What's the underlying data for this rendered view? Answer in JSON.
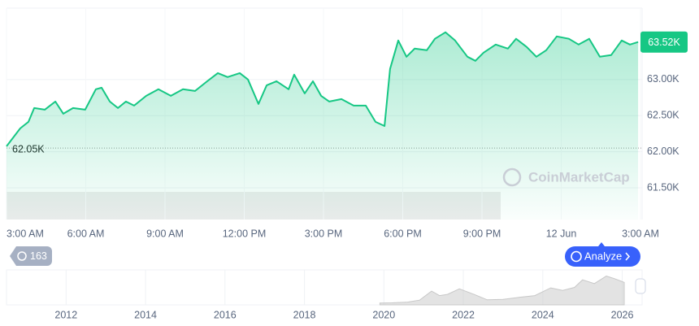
{
  "chart_data": [
    {
      "type": "line",
      "x": [
        0,
        0.52,
        0.83,
        1.05,
        1.45,
        1.85,
        2.15,
        2.52,
        2.98,
        3.38,
        3.6,
        3.91,
        4.22,
        4.52,
        4.83,
        5.29,
        5.75,
        6.22,
        6.68,
        7.14,
        7.6,
        8,
        8.37,
        8.83,
        9.14,
        9.54,
        9.85,
        10.22,
        10.68,
        10.89,
        11.29,
        11.6,
        11.91,
        12.22,
        12.68,
        13.14,
        13.6,
        13.97,
        14.31,
        14.52,
        14.83,
        15.14,
        15.45,
        15.91,
        16.22,
        16.62,
        16.98,
        17.45,
        17.75,
        18.06,
        18.52,
        18.98,
        19.29,
        19.69,
        20.06,
        20.43,
        20.83,
        21.29,
        21.66,
        22.06,
        22.46,
        22.89,
        23.29,
        23.6,
        23.91
      ],
      "series": [
        {
          "color": "#16c784",
          "values": [
            62074,
            62323,
            62413,
            62605,
            62582,
            62695,
            62526,
            62605,
            62582,
            62865,
            62887,
            62695,
            62605,
            62695,
            62639,
            62774,
            62865,
            62774,
            62865,
            62842,
            62977,
            63090,
            63034,
            63090,
            63000,
            62661,
            62921,
            62977,
            62865,
            63068,
            62808,
            62977,
            62774,
            62695,
            62729,
            62639,
            62639,
            62413,
            62356,
            63147,
            63542,
            63316,
            63429,
            63406,
            63565,
            63655,
            63542,
            63316,
            63260,
            63373,
            63485,
            63429,
            63565,
            63452,
            63316,
            63406,
            63598,
            63565,
            63485,
            63565,
            63316,
            63339,
            63542,
            63485,
            63520
          ]
        }
      ],
      "xlim": [
        0,
        24
      ],
      "xticks": [
        {
          "value": 0,
          "label": "3:00 AM"
        },
        {
          "value": 3,
          "label": "6:00 AM"
        },
        {
          "value": 6,
          "label": "9:00 AM"
        },
        {
          "value": 9,
          "label": "12:00 PM"
        },
        {
          "value": 12,
          "label": "3:00 PM"
        },
        {
          "value": 15,
          "label": "6:00 PM"
        },
        {
          "value": 18,
          "label": "9:00 PM"
        },
        {
          "value": 21,
          "label": "12 Jun"
        },
        {
          "value": 24,
          "label": "3:00 AM"
        }
      ],
      "ylim": [
        61060,
        63990
      ],
      "yticks": [
        {
          "value": 61500,
          "label": "61.50K"
        },
        {
          "value": 62000,
          "label": "62.00K"
        },
        {
          "value": 62500,
          "label": "62.50K"
        },
        {
          "value": 63000,
          "label": "63.00K"
        }
      ],
      "start_price": {
        "value": 62050,
        "label": "62.05K"
      },
      "current_price": {
        "value": 63520,
        "label": "63.52K"
      },
      "watermark": "CoinMarketCap",
      "grid": true
    },
    {
      "type": "area",
      "x": [
        2019.9,
        2020.2,
        2020.6,
        2020.9,
        2021.2,
        2021.4,
        2021.6,
        2021.9,
        2022.3,
        2022.6,
        2023,
        2023.4,
        2023.8,
        2024.2,
        2024.5,
        2024.8,
        2025,
        2025.3,
        2025.6,
        2025.8,
        2026.05
      ],
      "series": [
        {
          "color": "#c8c8c8",
          "values": [
            7000,
            8000,
            11000,
            19000,
            55000,
            37000,
            42000,
            64000,
            40000,
            20000,
            22000,
            30000,
            37000,
            68000,
            58000,
            70000,
            100000,
            85000,
            115000,
            105000,
            90000
          ]
        }
      ],
      "xlim": [
        2010.5,
        2026.5
      ],
      "ylim": [
        0,
        130000
      ],
      "xticks": [
        2012,
        2014,
        2016,
        2018,
        2020,
        2022,
        2024,
        2026
      ]
    }
  ],
  "history_badge": "163",
  "analyze_button": "Analyze"
}
